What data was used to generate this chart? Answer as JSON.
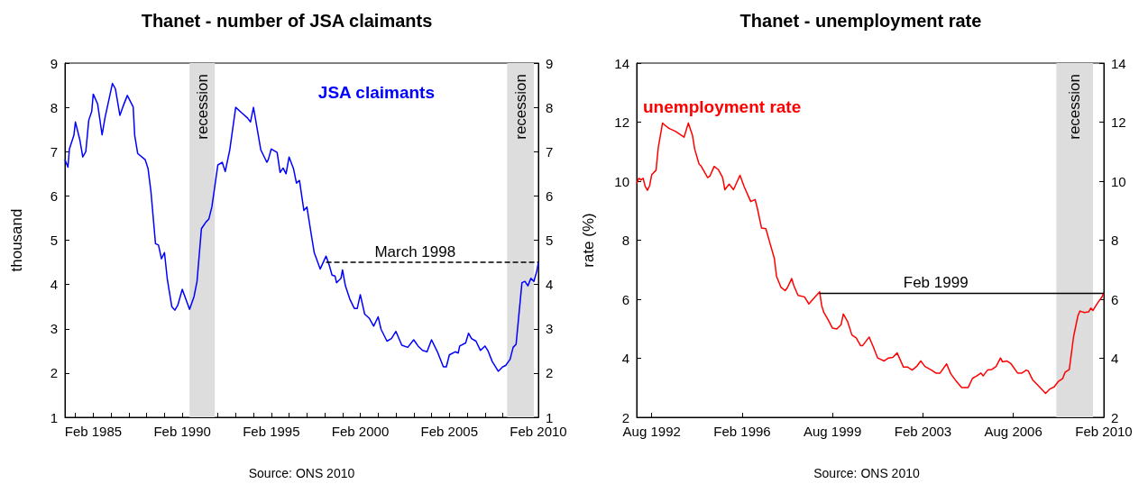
{
  "chart_data": [
    {
      "type": "line",
      "title": "Thanet - number of JSA claimants",
      "ylabel": "thousand",
      "marker": "none",
      "xlim": [
        "1983-07",
        "2010-02"
      ],
      "xticks": [
        {
          "value": "1984-02",
          "label": null
        },
        {
          "value": "1985-02",
          "label": "Feb 1985"
        },
        {
          "value": "1986-02",
          "label": null
        },
        {
          "value": "1987-02",
          "label": null
        },
        {
          "value": "1988-02",
          "label": null
        },
        {
          "value": "1989-02",
          "label": null
        },
        {
          "value": "1990-02",
          "label": "Feb 1990"
        },
        {
          "value": "1991-02",
          "label": null
        },
        {
          "value": "1992-02",
          "label": null
        },
        {
          "value": "1993-02",
          "label": null
        },
        {
          "value": "1994-02",
          "label": null
        },
        {
          "value": "1995-02",
          "label": "Feb 1995"
        },
        {
          "value": "1996-02",
          "label": null
        },
        {
          "value": "1997-02",
          "label": null
        },
        {
          "value": "1998-02",
          "label": null
        },
        {
          "value": "1999-02",
          "label": null
        },
        {
          "value": "2000-02",
          "label": "Feb 2000"
        },
        {
          "value": "2001-02",
          "label": null
        },
        {
          "value": "2002-02",
          "label": null
        },
        {
          "value": "2003-02",
          "label": null
        },
        {
          "value": "2004-02",
          "label": null
        },
        {
          "value": "2005-02",
          "label": "Feb 2005"
        },
        {
          "value": "2006-02",
          "label": null
        },
        {
          "value": "2007-02",
          "label": null
        },
        {
          "value": "2008-02",
          "label": null
        },
        {
          "value": "2009-02",
          "label": null
        },
        {
          "value": "2010-02",
          "label": "Feb 2010"
        }
      ],
      "ylim": [
        1,
        9
      ],
      "yticks": [
        1,
        2,
        3,
        4,
        5,
        6,
        7,
        8,
        9
      ],
      "y2lim": [
        1,
        9
      ],
      "y2ticks": [
        1,
        2,
        3,
        4,
        5,
        6,
        7,
        8,
        9
      ],
      "series": [
        {
          "name": "JSA claimants",
          "color": "#0000ff",
          "x": [
            "1983-07",
            "1983-09",
            "1983-10",
            "1984-01",
            "1984-02",
            "1984-05",
            "1984-07",
            "1984-09",
            "1984-11",
            "1985-01",
            "1985-02",
            "1985-05",
            "1985-08",
            "1985-10",
            "1986-03",
            "1986-05",
            "1986-08",
            "1986-10",
            "1987-01",
            "1987-05",
            "1987-06",
            "1987-08",
            "1988-01",
            "1988-03",
            "1988-05",
            "1988-08",
            "1988-10",
            "1988-12",
            "1989-02",
            "1989-04",
            "1989-07",
            "1989-09",
            "1989-11",
            "1990-02",
            "1990-05",
            "1990-07",
            "1990-10",
            "1990-12",
            "1991-03",
            "1991-06",
            "1991-08",
            "1991-10",
            "1992-02",
            "1992-05",
            "1992-07",
            "1992-10",
            "1993-02",
            "1993-06",
            "1993-10",
            "1993-12",
            "1994-02",
            "1994-05",
            "1994-07",
            "1994-11",
            "1994-12",
            "1995-02",
            "1995-06",
            "1995-08",
            "1995-10",
            "1995-12",
            "1996-02",
            "1996-05",
            "1996-07",
            "1996-09",
            "1996-12",
            "1997-02",
            "1997-05",
            "1997-07",
            "1997-11",
            "1998-03",
            "1998-05",
            "1998-07",
            "1998-09",
            "1998-10",
            "1999-01",
            "1999-02",
            "1999-04",
            "1999-07",
            "1999-10",
            "1999-12",
            "2000-02",
            "2000-05",
            "2000-08",
            "2000-11",
            "2001-02",
            "2001-04",
            "2001-08",
            "2001-11",
            "2002-02",
            "2002-06",
            "2002-10",
            "2003-02",
            "2003-05",
            "2003-08",
            "2003-11",
            "2004-02",
            "2004-06",
            "2004-10",
            "2004-12",
            "2005-02",
            "2005-06",
            "2005-08",
            "2005-09",
            "2006-01",
            "2006-03",
            "2006-05",
            "2006-08",
            "2006-11",
            "2007-02",
            "2007-04",
            "2007-07",
            "2007-11",
            "2008-02",
            "2008-04",
            "2008-07",
            "2008-09",
            "2008-11",
            "2009-01",
            "2009-03",
            "2009-05",
            "2009-07",
            "2009-09",
            "2009-11",
            "2010-01",
            "2010-02"
          ],
          "values": [
            6.82,
            6.65,
            7.06,
            7.37,
            7.67,
            7.27,
            6.88,
            7.0,
            7.71,
            7.91,
            8.3,
            8.08,
            7.38,
            7.77,
            8.54,
            8.42,
            7.82,
            8.01,
            8.27,
            8.01,
            7.37,
            6.96,
            6.82,
            6.62,
            6.08,
            4.92,
            4.89,
            4.58,
            4.72,
            4.11,
            3.5,
            3.42,
            3.53,
            3.89,
            3.62,
            3.44,
            3.73,
            4.07,
            5.26,
            5.41,
            5.48,
            5.75,
            6.7,
            6.76,
            6.55,
            7.03,
            8.0,
            7.88,
            7.76,
            7.67,
            8.0,
            7.43,
            7.04,
            6.76,
            6.82,
            7.06,
            6.98,
            6.53,
            6.63,
            6.5,
            6.88,
            6.62,
            6.29,
            6.35,
            5.67,
            5.75,
            5.13,
            4.72,
            4.35,
            4.64,
            4.45,
            4.21,
            4.19,
            4.04,
            4.14,
            4.33,
            3.97,
            3.67,
            3.46,
            3.46,
            3.77,
            3.33,
            3.24,
            3.06,
            3.27,
            2.99,
            2.72,
            2.78,
            2.94,
            2.63,
            2.58,
            2.75,
            2.61,
            2.51,
            2.48,
            2.75,
            2.48,
            2.14,
            2.14,
            2.41,
            2.48,
            2.45,
            2.61,
            2.68,
            2.9,
            2.78,
            2.72,
            2.51,
            2.61,
            2.51,
            2.26,
            2.04,
            2.14,
            2.17,
            2.31,
            2.58,
            2.65,
            3.36,
            4.04,
            4.07,
            3.97,
            4.14,
            4.07,
            4.31,
            4.5
          ]
        },
        {
          "color": "#000000",
          "line_style": "dashed",
          "x": [
            "1998-03",
            "2010-02"
          ],
          "values": [
            4.5,
            4.5
          ]
        }
      ],
      "bands": [
        {
          "axis": "x",
          "from": "1990-07",
          "to": "1991-12",
          "label": "recession",
          "color": "#dddddd"
        },
        {
          "axis": "x",
          "from": "2008-05",
          "to": "2009-11",
          "label": "recession",
          "color": "#dddddd"
        }
      ],
      "annotations": [
        {
          "text": "March 1998",
          "x": "2003-03",
          "y": 4.5
        },
        "Source: ONS 2010"
      ]
    },
    {
      "type": "line",
      "title": "Thanet - unemployment rate",
      "ylabel": "rate (%)",
      "marker": "none",
      "xlim": [
        "1992-01",
        "2010-02"
      ],
      "xticks": [
        {
          "value": "1992-08",
          "label": "Aug 1992"
        },
        {
          "value": "1996-02",
          "label": "Feb 1996"
        },
        {
          "value": "1999-08",
          "label": "Aug 1999"
        },
        {
          "value": "2003-02",
          "label": "Feb 2003"
        },
        {
          "value": "2006-08",
          "label": "Aug 2006"
        },
        {
          "value": "2010-02",
          "label": "Feb 2010"
        }
      ],
      "ylim": [
        2,
        14
      ],
      "yticks": [
        2,
        4,
        6,
        8,
        10,
        12,
        14
      ],
      "y2lim": [
        2,
        14
      ],
      "y2ticks": [
        2,
        4,
        6,
        8,
        10,
        12,
        14
      ],
      "series": [
        {
          "name": "unemployment rate",
          "color": "#ff0000",
          "x": [
            "1992-01",
            "1992-02",
            "1992-03",
            "1992-04",
            "1992-05",
            "1992-06",
            "1992-07",
            "1992-08",
            "1992-10",
            "1992-11",
            "1993-01",
            "1993-02",
            "1993-04",
            "1993-07",
            "1993-09",
            "1993-11",
            "1994-01",
            "1994-03",
            "1994-04",
            "1994-06",
            "1994-07",
            "1994-10",
            "1994-11",
            "1995-01",
            "1995-03",
            "1995-05",
            "1995-06",
            "1995-08",
            "1995-10",
            "1996-01",
            "1996-03",
            "1996-06",
            "1996-08",
            "1996-09",
            "1996-11",
            "1997-01",
            "1997-03",
            "1997-05",
            "1997-06",
            "1997-08",
            "1997-10",
            "1997-11",
            "1998-01",
            "1998-02",
            "1998-04",
            "1998-07",
            "1998-09",
            "1998-11",
            "1999-02",
            "1999-03",
            "1999-04",
            "1999-06",
            "1999-08",
            "1999-10",
            "1999-12",
            "2000-01",
            "2000-03",
            "2000-05",
            "2000-07",
            "2000-09",
            "2000-10",
            "2001-01",
            "2001-03",
            "2001-05",
            "2001-08",
            "2001-10",
            "2001-12",
            "2002-02",
            "2002-05",
            "2002-07",
            "2002-09",
            "2002-11",
            "2003-01",
            "2003-03",
            "2003-06",
            "2003-08",
            "2003-10",
            "2004-01",
            "2004-03",
            "2004-05",
            "2004-08",
            "2004-11",
            "2005-01",
            "2005-03",
            "2005-05",
            "2005-06",
            "2005-08",
            "2005-10",
            "2005-12",
            "2006-02",
            "2006-03",
            "2006-05",
            "2006-07",
            "2006-10",
            "2006-12",
            "2007-02",
            "2007-03",
            "2007-05",
            "2007-07",
            "2007-11",
            "2008-01",
            "2008-03",
            "2008-05",
            "2008-07",
            "2008-08",
            "2008-10",
            "2008-12",
            "2009-02",
            "2009-03",
            "2009-05",
            "2009-07",
            "2009-08",
            "2009-09",
            "2009-11",
            "2010-01",
            "2010-02"
          ],
          "values": [
            9.92,
            10.1,
            10.04,
            10.1,
            9.82,
            9.69,
            9.84,
            10.22,
            10.37,
            11.13,
            11.97,
            11.9,
            11.79,
            11.69,
            11.59,
            11.49,
            11.97,
            11.54,
            11.08,
            10.58,
            10.51,
            10.12,
            10.17,
            10.5,
            10.39,
            10.12,
            9.71,
            9.9,
            9.71,
            10.2,
            9.81,
            9.31,
            9.38,
            9.1,
            8.41,
            8.39,
            7.89,
            7.38,
            6.77,
            6.41,
            6.29,
            6.39,
            6.7,
            6.46,
            6.13,
            6.08,
            5.84,
            6.01,
            6.25,
            5.79,
            5.55,
            5.3,
            5.02,
            4.99,
            5.14,
            5.5,
            5.25,
            4.79,
            4.69,
            4.43,
            4.43,
            4.72,
            4.38,
            4.01,
            3.91,
            4.01,
            4.03,
            4.18,
            3.7,
            3.7,
            3.6,
            3.72,
            3.91,
            3.72,
            3.6,
            3.5,
            3.5,
            3.81,
            3.47,
            3.27,
            3.01,
            3.01,
            3.32,
            3.4,
            3.5,
            3.4,
            3.6,
            3.62,
            3.72,
            4.01,
            3.88,
            3.91,
            3.81,
            3.5,
            3.5,
            3.6,
            3.57,
            3.27,
            3.12,
            2.81,
            2.96,
            3.03,
            3.22,
            3.32,
            3.52,
            3.62,
            4.74,
            5.45,
            5.6,
            5.55,
            5.57,
            5.7,
            5.62,
            5.86,
            6.06,
            6.2
          ]
        },
        {
          "color": "#000000",
          "line_style": "solid",
          "x": [
            "1999-02",
            "2010-02"
          ],
          "values": [
            6.2,
            6.2
          ]
        }
      ],
      "bands": [
        {
          "axis": "x",
          "from": "2008-04",
          "to": "2009-09",
          "label": "recession",
          "color": "#dddddd"
        }
      ],
      "annotations": [
        {
          "text": "Feb 1999",
          "x": "2003-08",
          "y": 6.2
        },
        "Source: ONS 2010"
      ]
    }
  ]
}
